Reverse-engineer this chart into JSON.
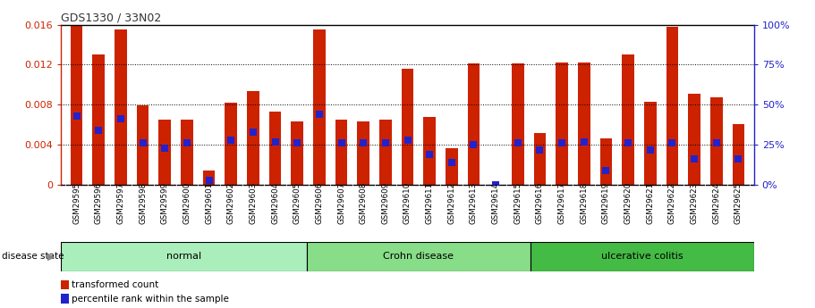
{
  "title": "GDS1330 / 33N02",
  "samples": [
    "GSM29595",
    "GSM29596",
    "GSM29597",
    "GSM29598",
    "GSM29599",
    "GSM29600",
    "GSM29601",
    "GSM29602",
    "GSM29603",
    "GSM29604",
    "GSM29605",
    "GSM29606",
    "GSM29607",
    "GSM29608",
    "GSM29609",
    "GSM29610",
    "GSM29611",
    "GSM29612",
    "GSM29613",
    "GSM29614",
    "GSM29615",
    "GSM29616",
    "GSM29617",
    "GSM29618",
    "GSM29619",
    "GSM29620",
    "GSM29621",
    "GSM29622",
    "GSM29623",
    "GSM29624",
    "GSM29625"
  ],
  "transformed_count": [
    0.016,
    0.013,
    0.0155,
    0.0079,
    0.0065,
    0.0065,
    0.0014,
    0.0082,
    0.0094,
    0.0073,
    0.0063,
    0.0155,
    0.0065,
    0.0063,
    0.0065,
    0.0116,
    0.0068,
    0.0037,
    0.0121,
    0.0,
    0.0121,
    0.0052,
    0.0122,
    0.0122,
    0.0046,
    0.013,
    0.0083,
    0.0158,
    0.0091,
    0.0087,
    0.0061
  ],
  "percentile_pct": [
    43,
    34,
    41,
    26,
    23,
    26,
    3,
    28,
    33,
    27,
    26,
    44,
    26,
    26,
    26,
    28,
    19,
    14,
    25,
    0,
    26,
    22,
    26,
    27,
    9,
    26,
    22,
    26,
    16,
    26,
    16
  ],
  "groups": [
    {
      "label": "normal",
      "start": 0,
      "end": 11,
      "color": "#aaeebb"
    },
    {
      "label": "Crohn disease",
      "start": 11,
      "end": 21,
      "color": "#88dd88"
    },
    {
      "label": "ulcerative colitis",
      "start": 21,
      "end": 31,
      "color": "#44bb44"
    }
  ],
  "bar_color": "#cc2200",
  "percentile_color": "#2222cc",
  "ylim_left": [
    0,
    0.016
  ],
  "yticks_left": [
    0,
    0.004,
    0.008,
    0.012,
    0.016
  ],
  "ylim_right": [
    0,
    100
  ],
  "yticks_right": [
    0,
    25,
    50,
    75,
    100
  ],
  "title_color": "#333333",
  "left_axis_color": "#cc2200",
  "right_axis_color": "#2222cc",
  "bg_color": "#ffffff",
  "bar_width": 0.55,
  "xlabels_bg": "#cccccc",
  "group_border_color": "#000000"
}
